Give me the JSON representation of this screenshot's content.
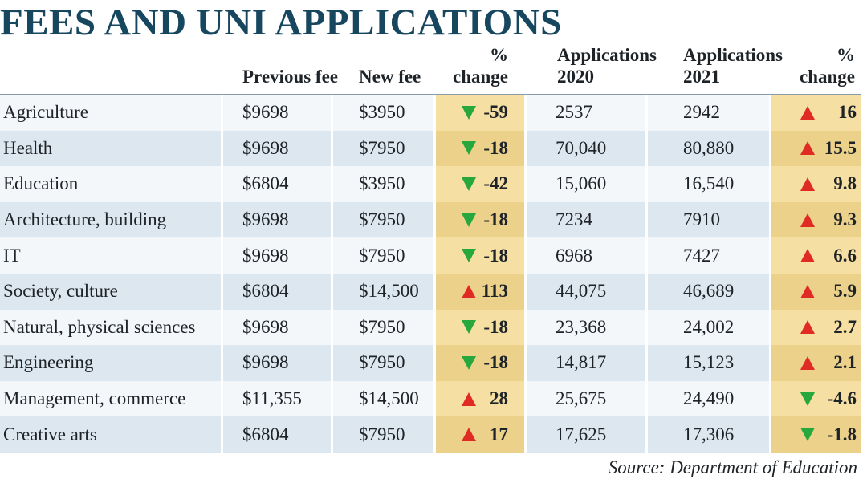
{
  "chart_data": {
    "type": "table",
    "title": "FEES AND UNI APPLICATIONS",
    "columns": [
      "",
      "Previous fee",
      "New fee",
      "% change",
      "Applications 2020",
      "Applications 2021",
      "% change"
    ],
    "rows": [
      {
        "field": "Agriculture",
        "prev_fee": "$9698",
        "new_fee": "$3950",
        "fee_change": "-59",
        "fee_dir": "down",
        "app2020": "2537",
        "app2021": "2942",
        "app_change": "16",
        "app_dir": "up"
      },
      {
        "field": "Health",
        "prev_fee": "$9698",
        "new_fee": "$7950",
        "fee_change": "-18",
        "fee_dir": "down",
        "app2020": "70,040",
        "app2021": "80,880",
        "app_change": "15.5",
        "app_dir": "up"
      },
      {
        "field": "Education",
        "prev_fee": "$6804",
        "new_fee": "$3950",
        "fee_change": "-42",
        "fee_dir": "down",
        "app2020": "15,060",
        "app2021": "16,540",
        "app_change": "9.8",
        "app_dir": "up"
      },
      {
        "field": "Architecture, building",
        "prev_fee": "$9698",
        "new_fee": "$7950",
        "fee_change": "-18",
        "fee_dir": "down",
        "app2020": "7234",
        "app2021": "7910",
        "app_change": "9.3",
        "app_dir": "up"
      },
      {
        "field": "IT",
        "prev_fee": "$9698",
        "new_fee": "$7950",
        "fee_change": "-18",
        "fee_dir": "down",
        "app2020": "6968",
        "app2021": "7427",
        "app_change": "6.6",
        "app_dir": "up"
      },
      {
        "field": "Society, culture",
        "prev_fee": "$6804",
        "new_fee": "$14,500",
        "fee_change": "113",
        "fee_dir": "up",
        "app2020": "44,075",
        "app2021": "46,689",
        "app_change": "5.9",
        "app_dir": "up"
      },
      {
        "field": "Natural, physical sciences",
        "prev_fee": "$9698",
        "new_fee": "$7950",
        "fee_change": "-18",
        "fee_dir": "down",
        "app2020": "23,368",
        "app2021": "24,002",
        "app_change": "2.7",
        "app_dir": "up"
      },
      {
        "field": "Engineering",
        "prev_fee": "$9698",
        "new_fee": "$7950",
        "fee_change": "-18",
        "fee_dir": "down",
        "app2020": "14,817",
        "app2021": "15,123",
        "app_change": "2.1",
        "app_dir": "up"
      },
      {
        "field": "Management, commerce",
        "prev_fee": "$11,355",
        "new_fee": "$14,500",
        "fee_change": "28",
        "fee_dir": "up",
        "app2020": "25,675",
        "app2021": "24,490",
        "app_change": "-4.6",
        "app_dir": "down"
      },
      {
        "field": "Creative arts",
        "prev_fee": "$6804",
        "new_fee": "$7950",
        "fee_change": "17",
        "fee_dir": "up",
        "app2020": "17,625",
        "app2021": "17,306",
        "app_change": "-1.8",
        "app_dir": "down"
      }
    ],
    "source": "Source: Department of Education",
    "colors": {
      "title": "#17465f",
      "up_arrow": "#e02b25",
      "down_arrow": "#27a83c",
      "pct_highlight": "#f6dfa2",
      "row_alt": "#dde7ef"
    }
  }
}
